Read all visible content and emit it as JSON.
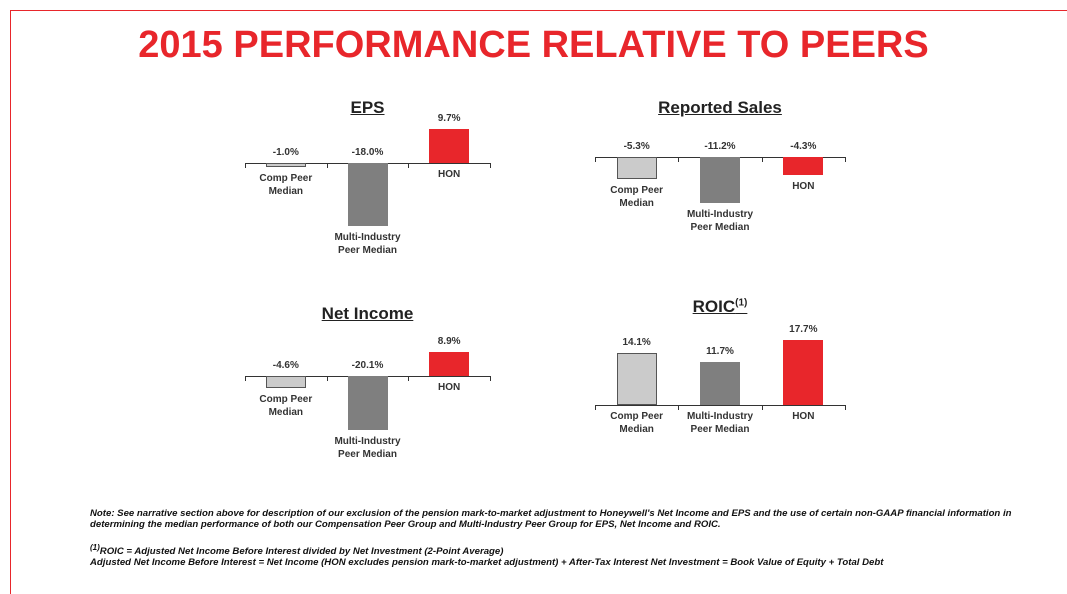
{
  "title": "2015 PERFORMANCE RELATIVE TO PEERS",
  "chart_data": [
    {
      "type": "bar",
      "title": "EPS",
      "categories": [
        "Comp Peer Median",
        "Multi-Industry Peer Median",
        "HON"
      ],
      "values": [
        -1.0,
        -18.0,
        9.7
      ],
      "value_labels": [
        "-1.0%",
        "-18.0%",
        "9.7%"
      ],
      "colors": [
        "#cbcbcb",
        "#7f7f7f",
        "#e8262b"
      ],
      "ylim": [
        -20,
        10
      ]
    },
    {
      "type": "bar",
      "title": "Reported Sales",
      "categories": [
        "Comp Peer Median",
        "Multi-Industry Peer Median",
        "HON"
      ],
      "values": [
        -5.3,
        -11.2,
        -4.3
      ],
      "value_labels": [
        "-5.3%",
        "-11.2%",
        "-4.3%"
      ],
      "colors": [
        "#cbcbcb",
        "#7f7f7f",
        "#e8262b"
      ],
      "ylim": [
        -12,
        0
      ]
    },
    {
      "type": "bar",
      "title": "Net Income",
      "categories": [
        "Comp Peer Median",
        "Multi-Industry Peer Median",
        "HON"
      ],
      "values": [
        -4.6,
        -20.1,
        8.9
      ],
      "value_labels": [
        "-4.6%",
        "-20.1%",
        "8.9%"
      ],
      "colors": [
        "#cbcbcb",
        "#7f7f7f",
        "#e8262b"
      ],
      "ylim": [
        -22,
        10
      ]
    },
    {
      "type": "bar",
      "title": "ROIC",
      "title_note": "(1)",
      "categories": [
        "Comp Peer Median",
        "Multi-Industry Peer Median",
        "HON"
      ],
      "values": [
        14.1,
        11.7,
        17.7
      ],
      "value_labels": [
        "14.1%",
        "11.7%",
        "17.7%"
      ],
      "colors": [
        "#cbcbcb",
        "#7f7f7f",
        "#e8262b"
      ],
      "ylim": [
        0,
        18
      ]
    }
  ],
  "notes": {
    "note": "Note: See narrative section above for description of our exclusion of the pension mark-to-market adjustment to Honeywell's Net Income and EPS and the use of certain non-GAAP financial information in determining the median performance of both our Compensation Peer Group and Multi-Industry Peer Group for EPS, Net Income and ROIC.",
    "footnote_marker": "(1)",
    "footnote": "ROIC = Adjusted Net Income Before Interest divided by Net Investment (2-Point Average)",
    "footnote_2": "Adjusted Net Income Before Interest = Net Income (HON excludes pension mark-to-market adjustment) + After-Tax Interest Net Investment = Book Value of Equity + Total Debt"
  }
}
